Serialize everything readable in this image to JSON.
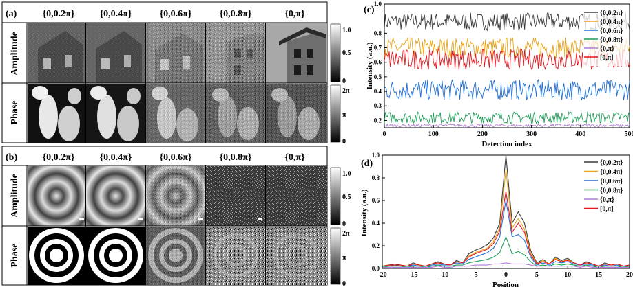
{
  "panel_a": {
    "letter": "(a)",
    "column_headers": [
      "{0,0.2π}",
      "{0,0.4π}",
      "{0,0.6π}",
      "{0,0.8π}",
      "{0,π}"
    ],
    "row_labels": [
      "Amplitude",
      "Phase"
    ],
    "amp_scale": {
      "top": "1.0",
      "mid": "0.5",
      "bottom": "0"
    },
    "phase_scale": {
      "top": "2π",
      "mid": "π",
      "bottom": "0"
    }
  },
  "panel_b": {
    "letter": "(b)",
    "column_headers": [
      "{0,0.2π}",
      "{0,0.4π}",
      "{0,0.6π}",
      "{0,0.8π}",
      "{0,π}"
    ],
    "row_labels": [
      "Amplitude",
      "Phase"
    ],
    "amp_scale": {
      "top": "1.0",
      "mid": "0.5",
      "bottom": "0"
    },
    "phase_scale": {
      "top": "2π",
      "mid": "π",
      "bottom": "0"
    }
  },
  "colors": {
    "s02": "#3a3a3a",
    "s04": "#e8a317",
    "s06": "#1f6fd6",
    "s08": "#1f9e5a",
    "s10": "#b07ad6",
    "sred": "#e8141c"
  },
  "chart_data": [
    {
      "panel": "(c)",
      "type": "line",
      "title": "",
      "xlabel": "Detection index",
      "ylabel": "Intensity (a.u.)",
      "xlim": [
        0,
        500
      ],
      "ylim": [
        0.15,
        1.0
      ],
      "xticks": [
        "0",
        "100",
        "200",
        "300",
        "400",
        "500"
      ],
      "yticks": [
        "0.2",
        "0.3",
        "0.4",
        "0.5",
        "0.6",
        "0.7",
        "0.8",
        "1.0"
      ],
      "legend_position": "top-right",
      "series": [
        {
          "name": "{0,0.2π}",
          "color": "#3a3a3a",
          "mean": 0.88,
          "amplitude": 0.06
        },
        {
          "name": "{0,0.4π}",
          "color": "#e8a317",
          "mean": 0.7,
          "amplitude": 0.07
        },
        {
          "name": "{0,0.6π}",
          "color": "#1f6fd6",
          "mean": 0.41,
          "amplitude": 0.07
        },
        {
          "name": "{0,0.8π}",
          "color": "#1f9e5a",
          "mean": 0.22,
          "amplitude": 0.04
        },
        {
          "name": "{0,π}",
          "color": "#b07ad6",
          "mean": 0.165,
          "amplitude": 0.01
        },
        {
          "name": "[0,π]",
          "color": "#e8141c",
          "mean": 0.62,
          "amplitude": 0.07
        }
      ]
    },
    {
      "panel": "(d)",
      "type": "line",
      "title": "",
      "xlabel": "Position",
      "ylabel": "Intensity (a.u.)",
      "xlim": [
        -20,
        20
      ],
      "ylim": [
        0.0,
        1.0
      ],
      "xticks": [
        "-20",
        "-15",
        "-10",
        "-5",
        "0",
        "5",
        "10",
        "15",
        "20"
      ],
      "yticks": [
        "0.0",
        "0.2",
        "0.4",
        "0.6",
        "0.8",
        "1.0"
      ],
      "legend_position": "top-right",
      "x": [
        -20,
        -19,
        -18,
        -17,
        -16,
        -15,
        -14,
        -13,
        -12,
        -11,
        -10,
        -9,
        -8,
        -7,
        -6,
        -5,
        -4,
        -3,
        -2,
        -1,
        0,
        1,
        2,
        3,
        4,
        5,
        6,
        7,
        8,
        9,
        10,
        11,
        12,
        13,
        14,
        15,
        16,
        17,
        18,
        19,
        20
      ],
      "series": [
        {
          "name": "{0,0.2π}",
          "color": "#3a3a3a",
          "values": [
            0.02,
            0.03,
            0.04,
            0.03,
            0.02,
            0.05,
            0.03,
            0.02,
            0.04,
            0.06,
            0.04,
            0.03,
            0.07,
            0.05,
            0.13,
            0.16,
            0.18,
            0.21,
            0.27,
            0.4,
            1.0,
            0.4,
            0.5,
            0.4,
            0.16,
            0.05,
            0.08,
            0.04,
            0.1,
            0.07,
            0.09,
            0.05,
            0.03,
            0.06,
            0.04,
            0.02,
            0.05,
            0.03,
            0.04,
            0.02,
            0.03
          ]
        },
        {
          "name": "{0,0.4π}",
          "color": "#e8a317",
          "values": [
            0.02,
            0.03,
            0.03,
            0.03,
            0.02,
            0.04,
            0.03,
            0.02,
            0.04,
            0.05,
            0.04,
            0.03,
            0.06,
            0.05,
            0.11,
            0.14,
            0.16,
            0.18,
            0.24,
            0.36,
            0.87,
            0.36,
            0.44,
            0.35,
            0.14,
            0.04,
            0.07,
            0.04,
            0.09,
            0.06,
            0.08,
            0.05,
            0.03,
            0.05,
            0.04,
            0.02,
            0.04,
            0.03,
            0.04,
            0.02,
            0.03
          ]
        },
        {
          "name": "{0,0.6π}",
          "color": "#1f6fd6",
          "values": [
            0.01,
            0.02,
            0.03,
            0.02,
            0.02,
            0.03,
            0.02,
            0.02,
            0.03,
            0.04,
            0.03,
            0.03,
            0.05,
            0.04,
            0.08,
            0.1,
            0.12,
            0.14,
            0.18,
            0.28,
            0.6,
            0.28,
            0.3,
            0.25,
            0.1,
            0.03,
            0.05,
            0.03,
            0.06,
            0.05,
            0.06,
            0.04,
            0.03,
            0.04,
            0.03,
            0.02,
            0.03,
            0.02,
            0.03,
            0.02,
            0.02
          ]
        },
        {
          "name": "{0,0.8π}",
          "color": "#1f9e5a",
          "values": [
            0.01,
            0.02,
            0.02,
            0.02,
            0.01,
            0.02,
            0.02,
            0.01,
            0.02,
            0.03,
            0.02,
            0.02,
            0.03,
            0.03,
            0.05,
            0.06,
            0.07,
            0.08,
            0.1,
            0.14,
            0.28,
            0.13,
            0.15,
            0.12,
            0.06,
            0.02,
            0.03,
            0.02,
            0.04,
            0.03,
            0.04,
            0.03,
            0.02,
            0.03,
            0.02,
            0.01,
            0.02,
            0.02,
            0.02,
            0.01,
            0.02
          ]
        },
        {
          "name": "{0,π}",
          "color": "#b07ad6",
          "values": [
            0.01,
            0.01,
            0.01,
            0.01,
            0.01,
            0.01,
            0.01,
            0.01,
            0.01,
            0.02,
            0.01,
            0.01,
            0.02,
            0.02,
            0.02,
            0.03,
            0.03,
            0.03,
            0.04,
            0.04,
            0.05,
            0.04,
            0.04,
            0.04,
            0.03,
            0.02,
            0.02,
            0.02,
            0.02,
            0.02,
            0.02,
            0.02,
            0.01,
            0.02,
            0.01,
            0.01,
            0.01,
            0.01,
            0.01,
            0.01,
            0.01
          ]
        },
        {
          "name": "[0,π]",
          "color": "#e8141c",
          "values": [
            0.02,
            0.03,
            0.03,
            0.03,
            0.02,
            0.04,
            0.03,
            0.02,
            0.04,
            0.05,
            0.04,
            0.03,
            0.06,
            0.05,
            0.1,
            0.13,
            0.15,
            0.17,
            0.22,
            0.33,
            0.68,
            0.32,
            0.4,
            0.32,
            0.12,
            0.04,
            0.06,
            0.04,
            0.08,
            0.06,
            0.07,
            0.05,
            0.03,
            0.05,
            0.04,
            0.02,
            0.04,
            0.03,
            0.04,
            0.02,
            0.03
          ]
        }
      ]
    }
  ]
}
